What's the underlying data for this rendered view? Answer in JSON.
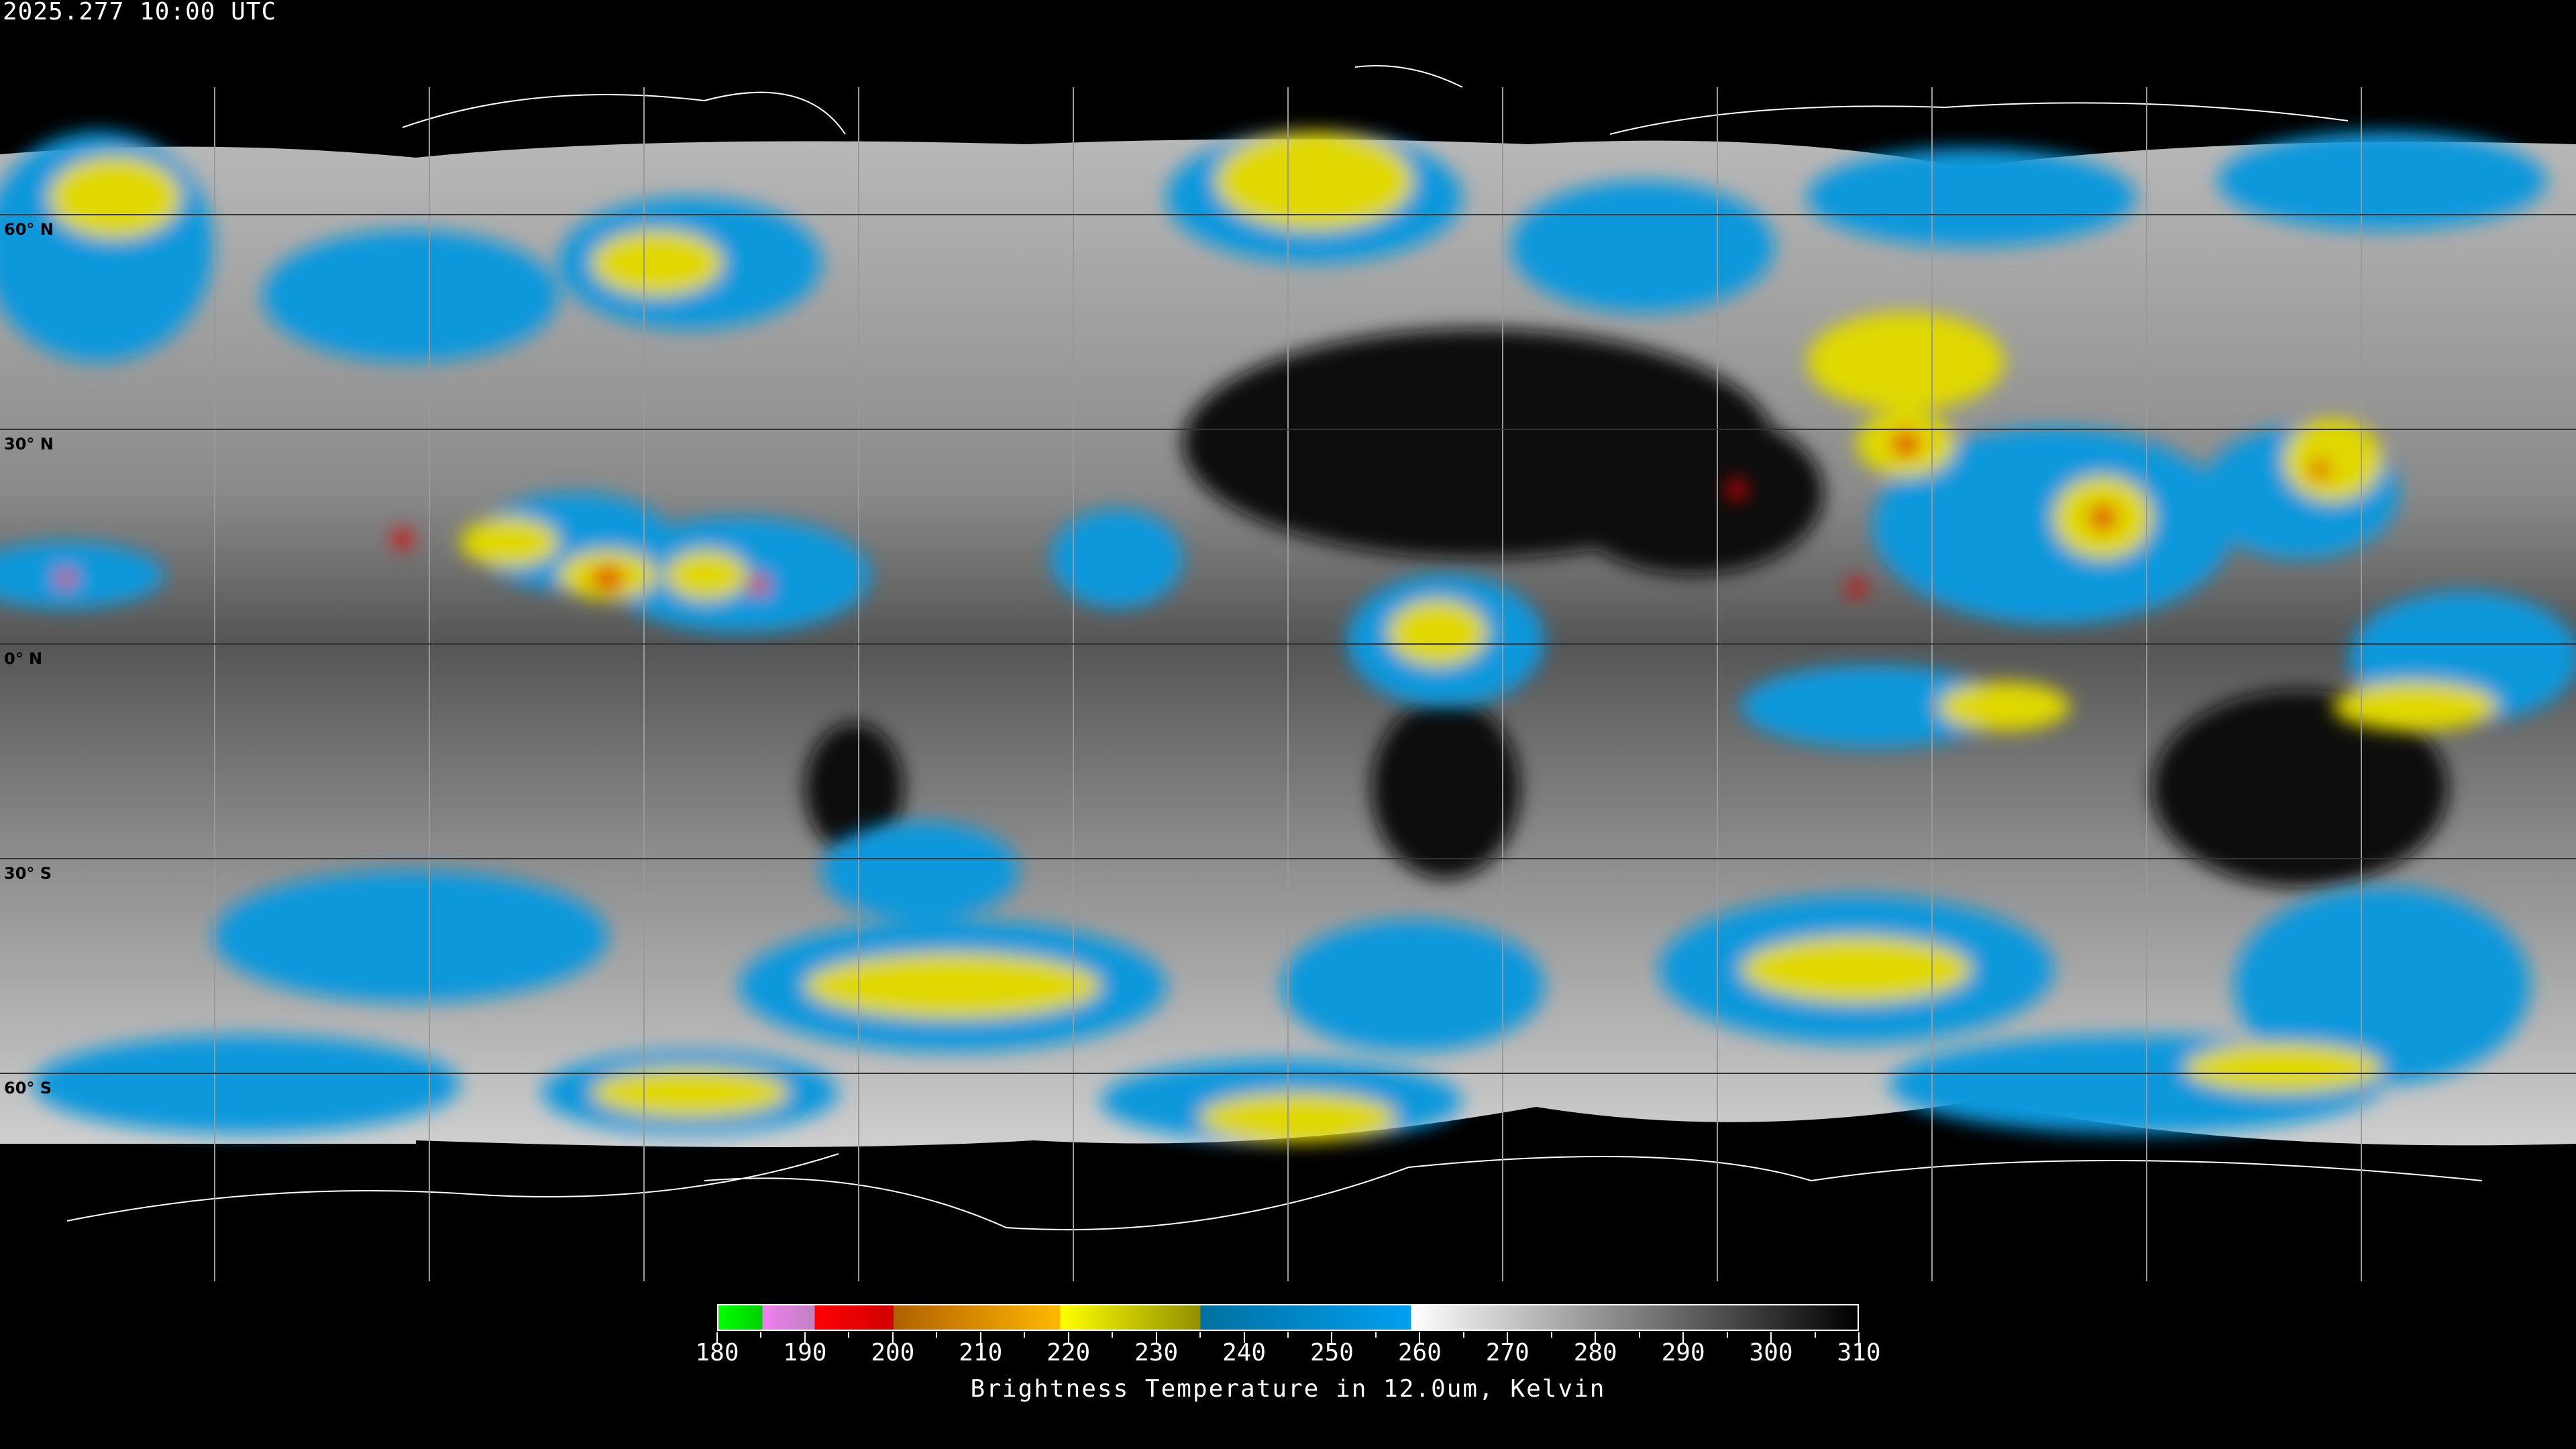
{
  "header": {
    "timestamp": "2025.277 10:00 UTC"
  },
  "map": {
    "projection": "equirectangular",
    "latitude_labels": [
      "60° N",
      "30° N",
      "0° N",
      "30° S",
      "60° S"
    ],
    "gridline_spacing_degrees": 30
  },
  "colorbar": {
    "title": "Brightness Temperature in 12.0um, Kelvin",
    "range": [
      180,
      310
    ],
    "tick_labels": [
      "180",
      "190",
      "200",
      "210",
      "220",
      "230",
      "240",
      "250",
      "260",
      "270",
      "280",
      "290",
      "300",
      "310"
    ],
    "segments": [
      {
        "from": 180,
        "to": 185,
        "color": "#00ff00"
      },
      {
        "from": 185,
        "to": 191,
        "color": "#f080f0"
      },
      {
        "from": 191,
        "to": 200,
        "color": "#ff0000"
      },
      {
        "from": 200,
        "to": 219,
        "color": "#ffb800"
      },
      {
        "from": 219,
        "to": 235,
        "color": "#ffff00"
      },
      {
        "from": 235,
        "to": 259,
        "color": "#0090d8"
      },
      {
        "from": 259,
        "to": 310,
        "color": "#ffffff"
      }
    ]
  }
}
